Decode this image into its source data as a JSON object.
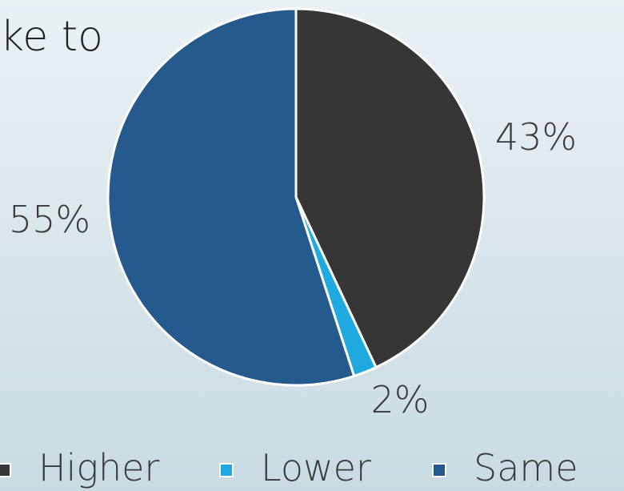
{
  "title_fragment": "ke to",
  "chart_data": {
    "type": "pie",
    "slices": [
      {
        "label": "Higher",
        "value": 43,
        "data_label": "43%",
        "color": "#363636"
      },
      {
        "label": "Lower",
        "value": 2,
        "data_label": "2%",
        "color": "#1fa9e1"
      },
      {
        "label": "Same",
        "value": 55,
        "data_label": "55%",
        "color": "#245a8e"
      }
    ],
    "legend_position": "bottom"
  },
  "legend": [
    {
      "label": "Higher",
      "color": "#363636"
    },
    {
      "label": "Lower",
      "color": "#1fa9e1"
    },
    {
      "label": "Same",
      "color": "#245a8e"
    }
  ]
}
